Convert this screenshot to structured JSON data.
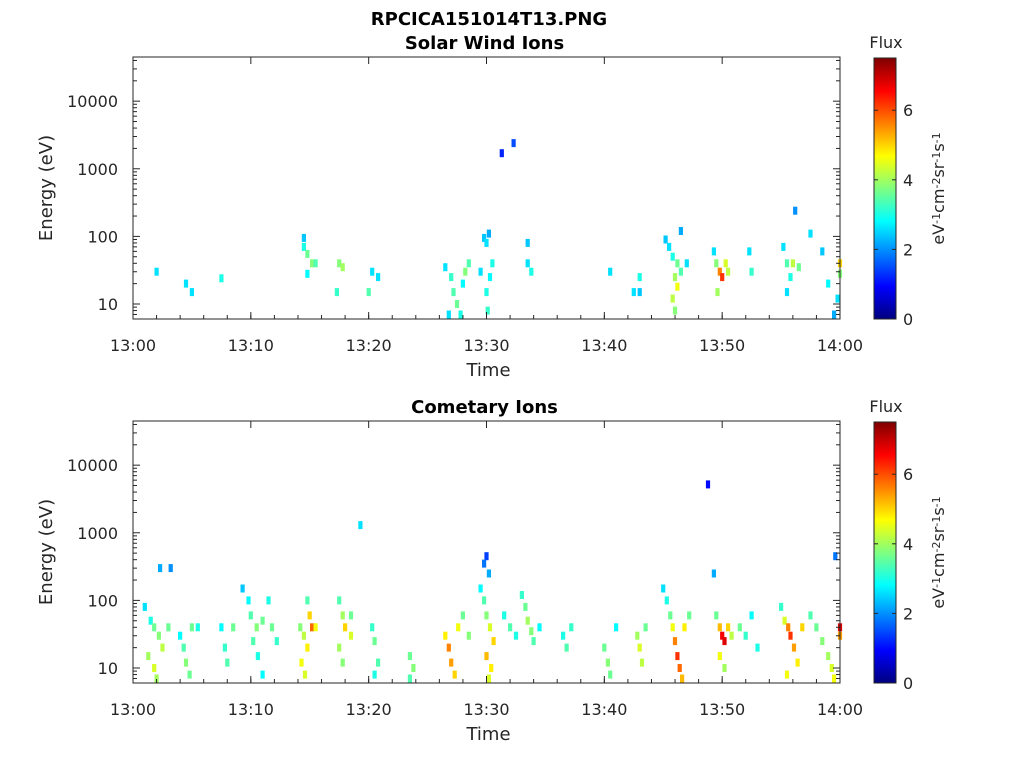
{
  "figure_title": "RPCICA151014T13.PNG",
  "chart_data": [
    {
      "type": "heatmap",
      "title": "Solar Wind Ions",
      "xlabel": "Time",
      "ylabel": "Energy (eV)",
      "xticks": [
        "13:00",
        "13:10",
        "13:20",
        "13:30",
        "13:40",
        "13:50",
        "14:00"
      ],
      "xlim": [
        "13:00",
        "14:00"
      ],
      "yscale": "log",
      "yticks": [
        "10",
        "100",
        "1000",
        "10000"
      ],
      "ylim": [
        6,
        45000
      ],
      "colorbar": {
        "label": "Flux",
        "unit": "eV-1cm-2sr-1s-1",
        "ticks": [
          "0",
          "2",
          "4",
          "6"
        ],
        "range": [
          0,
          7.5
        ],
        "colormap": "jet"
      },
      "cells": [
        [
          "13:02",
          30,
          2.6
        ],
        [
          "13:04.5",
          20,
          2.6
        ],
        [
          "13:05",
          15,
          2.6
        ],
        [
          "13:07.5",
          24,
          3.0
        ],
        [
          "13:14.5",
          95,
          2.4
        ],
        [
          "13:14.5",
          70,
          3.0
        ],
        [
          "13:14.8",
          55,
          3.6
        ],
        [
          "13:15.2",
          40,
          3.8
        ],
        [
          "13:14.8",
          28,
          2.8
        ],
        [
          "13:15.5",
          40,
          3.4
        ],
        [
          "13:17.5",
          40,
          3.8
        ],
        [
          "13:17.8",
          35,
          4.0
        ],
        [
          "13:17.3",
          15,
          3.2
        ],
        [
          "13:20.3",
          30,
          2.6
        ],
        [
          "13:20.8",
          25,
          2.6
        ],
        [
          "13:20",
          15,
          3.4
        ],
        [
          "13:26.5",
          35,
          2.6
        ],
        [
          "13:27",
          25,
          3.2
        ],
        [
          "13:27.2",
          15,
          3.4
        ],
        [
          "13:27.5",
          10,
          3.6
        ],
        [
          "13:27.8",
          7,
          3.0
        ],
        [
          "13:28.2",
          30,
          3.8
        ],
        [
          "13:28.5",
          40,
          3.4
        ],
        [
          "13:28",
          20,
          2.8
        ],
        [
          "13:26.8",
          7,
          2.6
        ],
        [
          "13:29.8",
          95,
          2.4
        ],
        [
          "13:30",
          80,
          2.6
        ],
        [
          "13:30.2",
          110,
          2.2
        ],
        [
          "13:30.5",
          40,
          3.0
        ],
        [
          "13:29.5",
          30,
          2.6
        ],
        [
          "13:30.3",
          25,
          2.8
        ],
        [
          "13:30",
          15,
          3.0
        ],
        [
          "13:30.1",
          8,
          3.2
        ],
        [
          "13:31.3",
          1700,
          1.2
        ],
        [
          "13:32.3",
          2400,
          1.5
        ],
        [
          "13:33.5",
          80,
          2.4
        ],
        [
          "13:33.5",
          40,
          2.6
        ],
        [
          "13:33.8",
          30,
          3.0
        ],
        [
          "13:40.5",
          30,
          2.6
        ],
        [
          "13:43",
          25,
          3.0
        ],
        [
          "13:42.5",
          15,
          2.6
        ],
        [
          "13:43",
          15,
          2.4
        ],
        [
          "13:45.2",
          90,
          2.4
        ],
        [
          "13:45.5",
          70,
          2.6
        ],
        [
          "13:45.8",
          50,
          3.0
        ],
        [
          "13:46.2",
          40,
          3.6
        ],
        [
          "13:46.5",
          120,
          2.2
        ],
        [
          "13:46",
          25,
          4.0
        ],
        [
          "13:46.2",
          18,
          4.6
        ],
        [
          "13:45.8",
          12,
          4.2
        ],
        [
          "13:46",
          8,
          3.8
        ],
        [
          "13:46.5",
          30,
          3.4
        ],
        [
          "13:47",
          40,
          2.6
        ],
        [
          "13:49.3",
          60,
          2.6
        ],
        [
          "13:49.5",
          40,
          3.8
        ],
        [
          "13:49.8",
          30,
          5.6
        ],
        [
          "13:50",
          25,
          6.2
        ],
        [
          "13:50.3",
          40,
          4.4
        ],
        [
          "13:49.6",
          15,
          4.0
        ],
        [
          "13:50.5",
          30,
          4.2
        ],
        [
          "13:52.3",
          60,
          2.6
        ],
        [
          "13:52.5",
          30,
          3.2
        ],
        [
          "13:55.2",
          70,
          2.6
        ],
        [
          "13:55.5",
          40,
          3.4
        ],
        [
          "13:56",
          40,
          4.2
        ],
        [
          "13:56.5",
          35,
          3.6
        ],
        [
          "13:55.8",
          25,
          3.0
        ],
        [
          "13:55.5",
          15,
          2.6
        ],
        [
          "13:56.2",
          240,
          2.0
        ],
        [
          "13:57.5",
          110,
          2.6
        ],
        [
          "13:58.5",
          60,
          2.4
        ],
        [
          "13:59",
          20,
          2.8
        ],
        [
          "13:59.5",
          7,
          2.2
        ],
        [
          "13:59.8",
          12,
          2.6
        ],
        [
          "14:00",
          40,
          5.0
        ],
        [
          "14:00",
          28,
          3.8
        ]
      ]
    },
    {
      "type": "heatmap",
      "title": "Cometary Ions",
      "xlabel": "Time",
      "ylabel": "Energy (eV)",
      "xticks": [
        "13:00",
        "13:10",
        "13:20",
        "13:30",
        "13:40",
        "13:50",
        "14:00"
      ],
      "xlim": [
        "13:00",
        "14:00"
      ],
      "yscale": "log",
      "yticks": [
        "10",
        "100",
        "1000",
        "10000"
      ],
      "ylim": [
        6,
        45000
      ],
      "colorbar": {
        "label": "Flux",
        "unit": "eV-1cm-2sr-1s-1",
        "ticks": [
          "0",
          "2",
          "4",
          "6"
        ],
        "range": [
          0,
          7.5
        ],
        "colormap": "jet"
      },
      "cells": [
        [
          "13:01",
          80,
          2.6
        ],
        [
          "13:01.5",
          50,
          3.0
        ],
        [
          "13:01.8",
          40,
          3.6
        ],
        [
          "13:02.2",
          30,
          3.8
        ],
        [
          "13:02.5",
          20,
          4.2
        ],
        [
          "13:01.3",
          15,
          4.0
        ],
        [
          "13:01.8",
          10,
          4.4
        ],
        [
          "13:02",
          7,
          4.0
        ],
        [
          "13:02.3",
          300,
          2.2
        ],
        [
          "13:03.2",
          300,
          2.0
        ],
        [
          "13:03",
          40,
          3.6
        ],
        [
          "13:04",
          30,
          2.8
        ],
        [
          "13:04.3",
          20,
          3.4
        ],
        [
          "13:04.5",
          12,
          3.8
        ],
        [
          "13:04.8",
          8,
          3.6
        ],
        [
          "13:05",
          40,
          3.6
        ],
        [
          "13:05.5",
          40,
          3.0
        ],
        [
          "13:07.5",
          40,
          2.8
        ],
        [
          "13:07.8",
          20,
          3.2
        ],
        [
          "13:08",
          12,
          3.4
        ],
        [
          "13:08.5",
          40,
          3.6
        ],
        [
          "13:09.3",
          150,
          2.4
        ],
        [
          "13:09.8",
          100,
          2.8
        ],
        [
          "13:10",
          60,
          3.4
        ],
        [
          "13:10.5",
          40,
          3.8
        ],
        [
          "13:11",
          50,
          3.6
        ],
        [
          "13:10.2",
          25,
          3.4
        ],
        [
          "13:10.6",
          15,
          3.0
        ],
        [
          "13:11",
          8,
          2.8
        ],
        [
          "13:11.5",
          100,
          3.0
        ],
        [
          "13:11.8",
          40,
          3.6
        ],
        [
          "13:12.2",
          25,
          3.2
        ],
        [
          "13:14.2",
          40,
          3.8
        ],
        [
          "13:14.5",
          30,
          4.2
        ],
        [
          "13:14.8",
          20,
          4.8
        ],
        [
          "13:14.3",
          12,
          4.6
        ],
        [
          "13:14.6",
          8,
          4.4
        ],
        [
          "13:15",
          60,
          5.0
        ],
        [
          "13:15.2",
          40,
          5.8
        ],
        [
          "13:15.5",
          40,
          4.6
        ],
        [
          "13:14.8",
          100,
          3.4
        ],
        [
          "13:17.5",
          100,
          3.4
        ],
        [
          "13:17.8",
          60,
          4.0
        ],
        [
          "13:18",
          40,
          5.0
        ],
        [
          "13:18.5",
          30,
          4.4
        ],
        [
          "13:17.5",
          20,
          4.0
        ],
        [
          "13:17.8",
          12,
          3.8
        ],
        [
          "13:18.5",
          60,
          3.6
        ],
        [
          "13:20.3",
          40,
          3.2
        ],
        [
          "13:20.5",
          25,
          3.6
        ],
        [
          "13:20.8",
          12,
          3.4
        ],
        [
          "13:20.5",
          8,
          3.0
        ],
        [
          "13:19.3",
          1300,
          2.6
        ],
        [
          "13:23.5",
          15,
          3.6
        ],
        [
          "13:23.8",
          10,
          3.8
        ],
        [
          "13:23.5",
          7,
          3.4
        ],
        [
          "13:26.5",
          30,
          4.8
        ],
        [
          "13:26.8",
          20,
          5.6
        ],
        [
          "13:27",
          12,
          5.4
        ],
        [
          "13:27.3",
          8,
          5.0
        ],
        [
          "13:27.6",
          40,
          4.6
        ],
        [
          "13:28",
          60,
          3.6
        ],
        [
          "13:28.5",
          30,
          3.8
        ],
        [
          "13:29.5",
          150,
          2.8
        ],
        [
          "13:29.8",
          100,
          3.4
        ],
        [
          "13:30",
          60,
          3.8
        ],
        [
          "13:30.3",
          40,
          4.4
        ],
        [
          "13:30.6",
          25,
          5.0
        ],
        [
          "13:30",
          15,
          5.2
        ],
        [
          "13:30.4",
          10,
          4.8
        ],
        [
          "13:30.2",
          7,
          4.4
        ],
        [
          "13:30",
          450,
          1.4
        ],
        [
          "13:29.8",
          350,
          1.8
        ],
        [
          "13:30.2",
          250,
          2.2
        ],
        [
          "13:31.5",
          60,
          3.0
        ],
        [
          "13:32",
          40,
          3.4
        ],
        [
          "13:33",
          120,
          3.2
        ],
        [
          "13:33.3",
          80,
          3.6
        ],
        [
          "13:33.5",
          50,
          4.0
        ],
        [
          "13:33.8",
          35,
          3.8
        ],
        [
          "13:34",
          25,
          3.4
        ],
        [
          "13:32.5",
          30,
          3.0
        ],
        [
          "13:34.5",
          40,
          2.8
        ],
        [
          "13:36.5",
          30,
          3.0
        ],
        [
          "13:36.8",
          20,
          3.4
        ],
        [
          "13:37.2",
          40,
          3.2
        ],
        [
          "13:40",
          20,
          3.6
        ],
        [
          "13:40.3",
          12,
          3.8
        ],
        [
          "13:40.5",
          8,
          3.6
        ],
        [
          "13:41",
          40,
          2.8
        ],
        [
          "13:42.8",
          30,
          4.0
        ],
        [
          "13:43",
          20,
          4.4
        ],
        [
          "13:43.2",
          12,
          4.2
        ],
        [
          "13:43.5",
          40,
          3.6
        ],
        [
          "13:45",
          150,
          2.6
        ],
        [
          "13:45.3",
          100,
          3.0
        ],
        [
          "13:45.6",
          60,
          3.6
        ],
        [
          "13:45.8",
          40,
          4.6
        ],
        [
          "13:46",
          25,
          5.6
        ],
        [
          "13:46.2",
          15,
          6.2
        ],
        [
          "13:46.4",
          10,
          5.8
        ],
        [
          "13:46.6",
          7,
          5.2
        ],
        [
          "13:46.8",
          40,
          4.8
        ],
        [
          "13:47.2",
          60,
          3.6
        ],
        [
          "13:48.8",
          5200,
          1.0
        ],
        [
          "13:49.3",
          250,
          2.2
        ],
        [
          "13:49.5",
          60,
          3.6
        ],
        [
          "13:49.8",
          40,
          5.2
        ],
        [
          "13:50",
          30,
          6.6
        ],
        [
          "13:50.2",
          25,
          6.8
        ],
        [
          "13:50.5",
          40,
          5.0
        ],
        [
          "13:49.8",
          15,
          4.6
        ],
        [
          "13:50.2",
          10,
          4.0
        ],
        [
          "13:50.8",
          30,
          4.2
        ],
        [
          "13:51.5",
          40,
          3.6
        ],
        [
          "13:52",
          30,
          3.2
        ],
        [
          "13:52.5",
          60,
          2.8
        ],
        [
          "13:53",
          20,
          3.0
        ],
        [
          "13:55",
          80,
          3.2
        ],
        [
          "13:55.3",
          50,
          4.4
        ],
        [
          "13:55.6",
          40,
          5.6
        ],
        [
          "13:55.8",
          30,
          6.2
        ],
        [
          "13:56.1",
          20,
          5.4
        ],
        [
          "13:56.4",
          12,
          4.8
        ],
        [
          "13:55.5",
          8,
          4.6
        ],
        [
          "13:56.8",
          40,
          5.0
        ],
        [
          "13:57.5",
          60,
          3.4
        ],
        [
          "13:58",
          40,
          3.6
        ],
        [
          "13:58.5",
          25,
          3.8
        ],
        [
          "13:59",
          15,
          4.0
        ],
        [
          "13:59.3",
          10,
          4.4
        ],
        [
          "13:59.5",
          7,
          4.6
        ],
        [
          "13:59.6",
          450,
          1.8
        ],
        [
          "14:00",
          40,
          6.8
        ],
        [
          "14:00",
          30,
          5.4
        ]
      ]
    }
  ]
}
